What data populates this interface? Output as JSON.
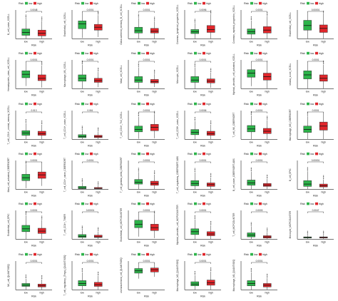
{
  "colors": {
    "low": "#2db34a",
    "high": "#e0262b",
    "axis": "#222222",
    "box_stroke": "#333333"
  },
  "legend": {
    "title": "Risk",
    "low_label": "low",
    "high_label": "high"
  },
  "x_axis": {
    "label": "Risk",
    "categories": [
      "low",
      "high"
    ]
  },
  "chart_data": [
    {
      "type": "box",
      "ylabel": "B_cell_naive_XCELL",
      "sig": "0.0048",
      "low": {
        "q1": 0.12,
        "median": 0.22,
        "q3": 0.34
      },
      "high": {
        "q1": 0.1,
        "median": 0.19,
        "q3": 0.3
      }
    },
    {
      "type": "box",
      "ylabel": "Endothelial_cell_XCELL",
      "sig": "0.0001",
      "low": {
        "q1": 0.35,
        "median": 0.52,
        "q3": 0.62
      },
      "high": {
        "q1": 0.3,
        "median": 0.4,
        "q3": 0.5
      }
    },
    {
      "type": "box",
      "ylabel": "Class-switched_memory_B_cell_XCELL",
      "sig": "0.0001",
      "low": {
        "q1": 0.2,
        "median": 0.28,
        "q3": 0.4
      },
      "high": {
        "q1": 0.2,
        "median": 0.26,
        "q3": 0.36
      }
    },
    {
      "type": "box",
      "ylabel": "Common_lymphoid_progenitor_XCELL",
      "sig": "0.0096",
      "low": {
        "q1": 0.18,
        "median": 0.24,
        "q3": 0.32
      },
      "high": {
        "q1": 0.22,
        "median": 0.32,
        "q3": 0.46
      }
    },
    {
      "type": "box",
      "ylabel": "Common_myeloid_progenitor_XCELL",
      "sig": "0.0001",
      "low": {
        "q1": 0.16,
        "median": 0.24,
        "q3": 0.34
      },
      "high": {
        "q1": 0.2,
        "median": 0.3,
        "q3": 0.42
      }
    },
    {
      "type": "box",
      "ylabel": "Endothelial_cell_XCELL",
      "sig": "0.00001",
      "low": {
        "q1": 0.3,
        "median": 0.46,
        "q3": 0.64
      },
      "high": {
        "q1": 0.22,
        "median": 0.36,
        "q3": 0.48
      }
    },
    {
      "type": "box",
      "ylabel": "Hematopoietic_stem_cell_XCELL",
      "sig": "0.0001",
      "low": {
        "q1": 0.38,
        "median": 0.5,
        "q3": 0.62
      },
      "high": {
        "q1": 0.28,
        "median": 0.36,
        "q3": 0.48
      }
    },
    {
      "type": "box",
      "ylabel": "Macrophage_M1_XCELL",
      "sig": "0.0001",
      "low": {
        "q1": 0.26,
        "median": 0.36,
        "q3": 0.48
      },
      "high": {
        "q1": 0.22,
        "median": 0.28,
        "q3": 0.36
      }
    },
    {
      "type": "box",
      "ylabel": "Mast_cell_XCELL",
      "sig": "0.0001",
      "low": {
        "q1": 0.22,
        "median": 0.3,
        "q3": 0.42
      },
      "high": {
        "q1": 0.2,
        "median": 0.24,
        "q3": 0.32
      }
    },
    {
      "type": "box",
      "ylabel": "Monocyte_XCELL",
      "sig": "0.0001",
      "low": {
        "q1": 0.22,
        "median": 0.3,
        "q3": 0.42
      },
      "high": {
        "q1": 0.2,
        "median": 0.26,
        "q3": 0.34
      }
    },
    {
      "type": "box",
      "ylabel": "Myeloid_dendritic_cell_activated_XCELL",
      "sig": "0.0001",
      "low": {
        "q1": 0.4,
        "median": 0.54,
        "q3": 0.66
      },
      "high": {
        "q1": 0.3,
        "median": 0.42,
        "q3": 0.54
      }
    },
    {
      "type": "box",
      "ylabel": "stroma_score_XCELL",
      "sig": "0.0001",
      "low": {
        "q1": 0.34,
        "median": 0.48,
        "q3": 0.62
      },
      "high": {
        "q1": 0.26,
        "median": 0.36,
        "q3": 0.48
      }
    },
    {
      "type": "box",
      "ylabel": "T_cell_CD4+_central_memory_XCELL",
      "sig": "0.013",
      "low": {
        "q1": 0.14,
        "median": 0.22,
        "q3": 0.3
      },
      "high": {
        "q1": 0.14,
        "median": 0.2,
        "q3": 0.28
      }
    },
    {
      "type": "box",
      "ylabel": "T_cell_CD4+_naive_XCELL",
      "sig": "0.061",
      "low": {
        "q1": 0.06,
        "median": 0.1,
        "q3": 0.16
      },
      "high": {
        "q1": 0.06,
        "median": 0.09,
        "q3": 0.14
      }
    },
    {
      "type": "box",
      "ylabel": "T_cell_CD4+_Th2_XCELL",
      "sig": "0.0001",
      "low": {
        "q1": 0.26,
        "median": 0.34,
        "q3": 0.46
      },
      "high": {
        "q1": 0.3,
        "median": 0.42,
        "q3": 0.52
      }
    },
    {
      "type": "box",
      "ylabel": "T_cell_CD8+_naive_XCELL",
      "sig": "0.0006",
      "low": {
        "q1": 0.16,
        "median": 0.24,
        "q3": 0.34
      },
      "high": {
        "q1": 0.14,
        "median": 0.2,
        "q3": 0.28
      }
    },
    {
      "type": "box",
      "ylabel": "T_cell_NK_CIBERSORT",
      "sig": "0.0001",
      "low": {
        "q1": 0.26,
        "median": 0.36,
        "q3": 0.48
      },
      "high": {
        "q1": 0.2,
        "median": 0.28,
        "q3": 0.38
      }
    },
    {
      "type": "box",
      "ylabel": "Macrophage_M0_CIBERSORT",
      "sig": "0.0001",
      "low": {
        "q1": 0.24,
        "median": 0.34,
        "q3": 0.46
      },
      "high": {
        "q1": 0.32,
        "median": 0.46,
        "q3": 0.6
      }
    },
    {
      "type": "box",
      "ylabel": "Mast_cell_activated_CIBERSORT",
      "sig": "0.0001",
      "low": {
        "q1": 0.3,
        "median": 0.4,
        "q3": 0.52
      },
      "high": {
        "q1": 0.38,
        "median": 0.5,
        "q3": 0.6
      }
    },
    {
      "type": "box",
      "ylabel": "T_cell_CD4+_naive_CIBERSORT",
      "sig": "0.0001",
      "low": {
        "q1": 0.02,
        "median": 0.04,
        "q3": 0.1
      },
      "high": {
        "q1": 0.02,
        "median": 0.03,
        "q3": 0.06
      }
    },
    {
      "type": "box",
      "ylabel": "T_cell_gamma_delta_CIBERSORT",
      "sig": "0.0001",
      "low": {
        "q1": 0.18,
        "median": 0.24,
        "q3": 0.34
      },
      "high": {
        "q1": 0.14,
        "median": 0.2,
        "q3": 0.28
      }
    },
    {
      "type": "box",
      "ylabel": "T_cell_regulatory_CIBERSORT-ABS",
      "sig": "0.0001",
      "low": {
        "q1": 0.12,
        "median": 0.2,
        "q3": 0.3
      },
      "high": {
        "q1": 0.1,
        "median": 0.16,
        "q3": 0.22
      }
    },
    {
      "type": "box",
      "ylabel": "B_cell_naive_CIBERSORT-ABS",
      "sig": "0.0001",
      "low": {
        "q1": 0.14,
        "median": 0.22,
        "q3": 0.32
      },
      "high": {
        "q1": 0.1,
        "median": 0.14,
        "q3": 0.2
      }
    },
    {
      "type": "box",
      "ylabel": "B_cell_EPIC",
      "sig": "0.00001",
      "low": {
        "q1": 0.1,
        "median": 0.18,
        "q3": 0.3
      },
      "high": {
        "q1": 0.08,
        "median": 0.12,
        "q3": 0.18
      }
    },
    {
      "type": "box",
      "ylabel": "Endothelial_cell_EPIC",
      "sig": "0.0001",
      "low": {
        "q1": 0.26,
        "median": 0.36,
        "q3": 0.48
      },
      "high": {
        "q1": 0.2,
        "median": 0.28,
        "q3": 0.38
      }
    },
    {
      "type": "box",
      "ylabel": "T_cell_CD4+_TIMER",
      "sig": "0.00001",
      "low": {
        "q1": 0.06,
        "median": 0.1,
        "q3": 0.16
      },
      "high": {
        "q1": 0.06,
        "median": 0.08,
        "q3": 0.14
      }
    },
    {
      "type": "box",
      "ylabel": "Endothelial_cell_MCPCOUNTER",
      "sig": "0.0001",
      "low": {
        "q1": 0.4,
        "median": 0.52,
        "q3": 0.66
      },
      "high": {
        "q1": 0.3,
        "median": 0.4,
        "q3": 0.52
      }
    },
    {
      "type": "box",
      "ylabel": "Myeloid_dendritic_cell_MCPCOUNTER",
      "sig": "0.0001",
      "low": {
        "q1": 0.16,
        "median": 0.26,
        "q3": 0.36
      },
      "high": {
        "q1": 0.12,
        "median": 0.18,
        "q3": 0.26
      }
    },
    {
      "type": "box",
      "ylabel": "T_cell_MCPCOUNTER",
      "sig": "0.0003",
      "low": {
        "q1": 0.08,
        "median": 0.14,
        "q3": 0.22
      },
      "high": {
        "q1": 0.04,
        "median": 0.08,
        "q3": 0.12
      }
    },
    {
      "type": "box",
      "ylabel": "Monocyte_MCPCOUNTER",
      "sig": "0.0047",
      "low": {
        "q1": 0.04,
        "median": 0.06,
        "q3": 0.08
      },
      "high": {
        "q1": 0.04,
        "median": 0.06,
        "q3": 0.08
      }
    },
    {
      "type": "box",
      "ylabel": "NK_cell_QUANTISEQ",
      "sig": "0.0001",
      "low": {
        "q1": 0.12,
        "median": 0.16,
        "q3": 0.22
      },
      "high": {
        "q1": 0.1,
        "median": 0.14,
        "q3": 0.2
      }
    },
    {
      "type": "box",
      "ylabel": "T_cell_regulatory_(Tregs)_QUANTISEQ",
      "sig": "0.0001",
      "low": {
        "q1": 0.14,
        "median": 0.22,
        "q3": 0.32
      },
      "high": {
        "q1": 0.12,
        "median": 0.18,
        "q3": 0.26
      }
    },
    {
      "type": "box",
      "ylabel": "uncharacterized_cell_QUANTISEQ",
      "sig": "0.0001",
      "low": {
        "q1": 0.58,
        "median": 0.66,
        "q3": 0.74
      },
      "high": {
        "q1": 0.62,
        "median": 0.7,
        "q3": 0.76
      }
    },
    {
      "type": "box",
      "ylabel": "Macrophage_M2_QUANTISEQ",
      "sig": "0.0001",
      "low": {
        "q1": 0.14,
        "median": 0.2,
        "q3": 0.28
      },
      "high": {
        "q1": 0.16,
        "median": 0.24,
        "q3": 0.34
      }
    },
    {
      "type": "box",
      "ylabel": "Macrophage_M1_QUANTISEQ",
      "sig": "0.0001",
      "low": {
        "q1": 0.14,
        "median": 0.22,
        "q3": 0.32
      },
      "high": {
        "q1": 0.1,
        "median": 0.16,
        "q3": 0.22
      }
    }
  ]
}
